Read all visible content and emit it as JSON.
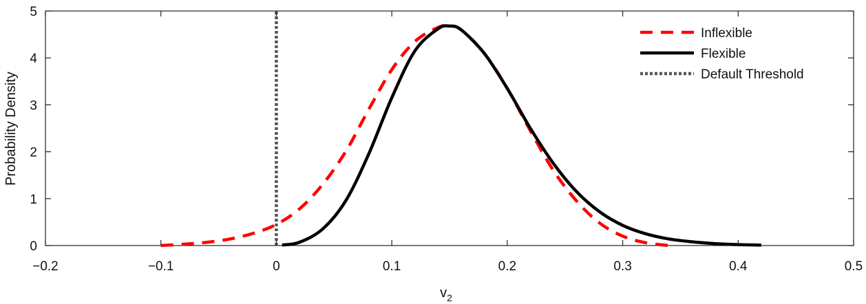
{
  "chart_data": {
    "type": "line",
    "title": "",
    "xlabel": "v",
    "xlabel_sub": "2",
    "ylabel": "Probability Density",
    "xlim": [
      -0.2,
      0.5
    ],
    "ylim": [
      0,
      5
    ],
    "xticks": [
      -0.2,
      -0.1,
      0,
      0.1,
      0.2,
      0.3,
      0.4,
      0.5
    ],
    "xtick_labels": [
      "−0.2",
      "−0.1",
      "0",
      "0.1",
      "0.2",
      "0.3",
      "0.4",
      "0.5"
    ],
    "yticks": [
      0,
      1,
      2,
      3,
      4,
      5
    ],
    "ytick_labels": [
      "0",
      "1",
      "2",
      "3",
      "4",
      "5"
    ],
    "grid": false,
    "legend_position": "top-right",
    "series": [
      {
        "name": "Inflexible",
        "style": "dashed",
        "color": "#ff0000",
        "x": [
          -0.1,
          -0.08,
          -0.06,
          -0.04,
          -0.02,
          0,
          0.02,
          0.04,
          0.06,
          0.08,
          0.1,
          0.12,
          0.14,
          0.15,
          0.16,
          0.18,
          0.2,
          0.22,
          0.24,
          0.26,
          0.28,
          0.3,
          0.32,
          0.34
        ],
        "y": [
          0.0,
          0.03,
          0.07,
          0.14,
          0.26,
          0.45,
          0.78,
          1.3,
          2.0,
          2.9,
          3.75,
          4.35,
          4.65,
          4.68,
          4.6,
          4.1,
          3.35,
          2.45,
          1.6,
          0.95,
          0.48,
          0.2,
          0.06,
          0.0
        ]
      },
      {
        "name": "Flexible",
        "style": "solid",
        "color": "#000000",
        "x": [
          0.005,
          0.02,
          0.04,
          0.06,
          0.08,
          0.1,
          0.12,
          0.14,
          0.15,
          0.16,
          0.18,
          0.2,
          0.22,
          0.24,
          0.26,
          0.28,
          0.3,
          0.32,
          0.34,
          0.36,
          0.38,
          0.4,
          0.42
        ],
        "y": [
          0.01,
          0.07,
          0.35,
          0.95,
          1.95,
          3.15,
          4.15,
          4.62,
          4.68,
          4.6,
          4.1,
          3.35,
          2.5,
          1.75,
          1.15,
          0.72,
          0.43,
          0.25,
          0.14,
          0.08,
          0.04,
          0.02,
          0.01
        ]
      },
      {
        "name": "Default Threshold",
        "style": "dotted",
        "color": "#555555",
        "x": [
          0,
          0
        ],
        "y": [
          0,
          5
        ]
      }
    ]
  }
}
